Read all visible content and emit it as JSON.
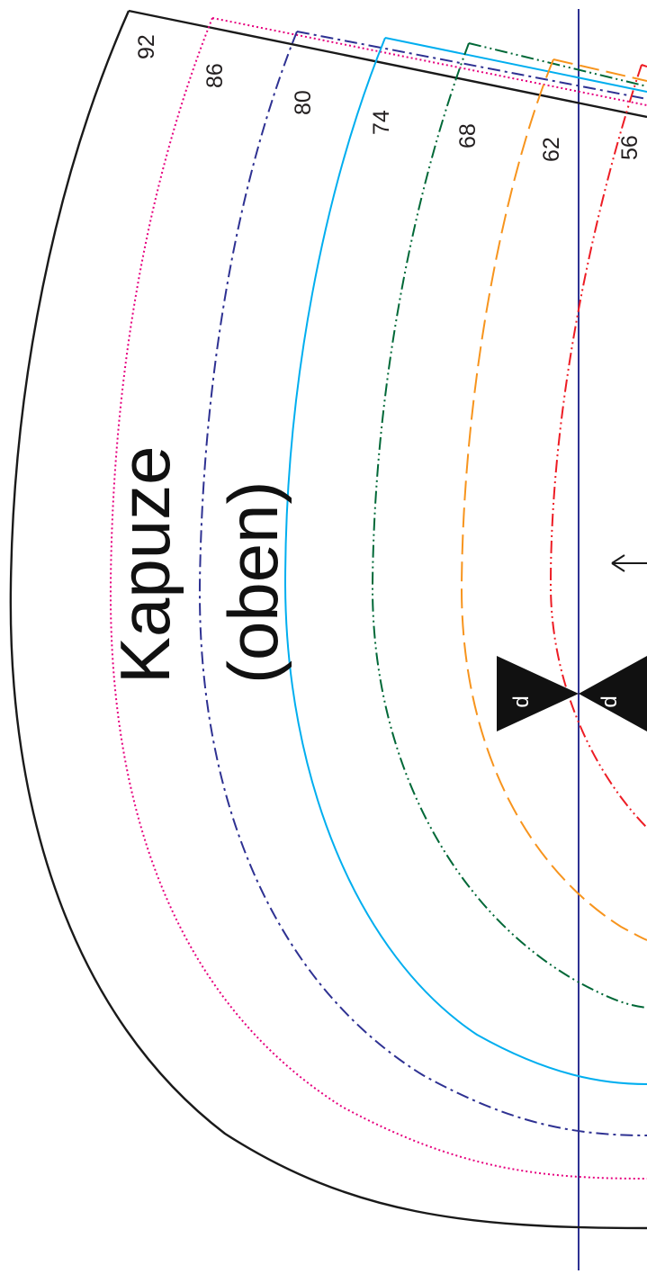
{
  "pattern": {
    "title_line1": "Kapuze",
    "title_line2": "(oben)",
    "notch_label": "d",
    "sizes": [
      {
        "label": "92",
        "color": "#1a1a1a",
        "style": "solid"
      },
      {
        "label": "86",
        "color": "#e6007e",
        "style": "dotted"
      },
      {
        "label": "80",
        "color": "#2e3192",
        "style": "dash-dot"
      },
      {
        "label": "74",
        "color": "#00aeef",
        "style": "solid"
      },
      {
        "label": "68",
        "color": "#006837",
        "style": "dash-dot-dot"
      },
      {
        "label": "62",
        "color": "#f7941d",
        "style": "long-dash"
      },
      {
        "label": "56",
        "color": "#ed1c24",
        "style": "dash-dot-dot"
      }
    ],
    "grainline_color": "#2e3192"
  }
}
